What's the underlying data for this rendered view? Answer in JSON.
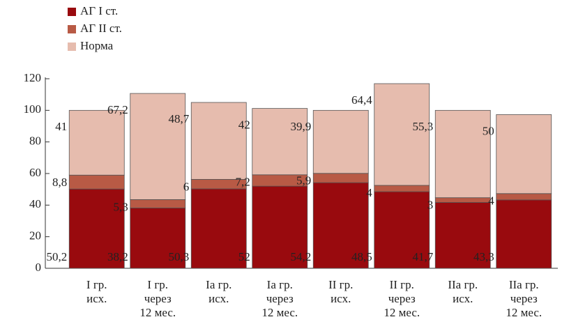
{
  "chart_data": {
    "type": "stacked_bar",
    "categories": [
      [
        "I гр.",
        "исх."
      ],
      [
        "I гр.",
        "через",
        "12 мес."
      ],
      [
        "Ia гр.",
        "исх."
      ],
      [
        "Ia гр.",
        "через",
        "12 мес."
      ],
      [
        "II гр.",
        "исх."
      ],
      [
        "II гр.",
        "через",
        "12 мес."
      ],
      [
        "IIa гр.",
        "исх."
      ],
      [
        "IIa гр.",
        "через",
        "12 мес."
      ]
    ],
    "series": [
      {
        "name": "АГ I ст.",
        "color": "#990a0e",
        "values": [
          50.2,
          38.2,
          50.3,
          52,
          54.2,
          48.5,
          41.7,
          43.3
        ],
        "value_labels": [
          "50,2",
          "38,2",
          "50,3",
          "52",
          "54,2",
          "48,5",
          "41,7",
          "43,3"
        ]
      },
      {
        "name": "АГ II  ст.",
        "color": "#b85a45",
        "values": [
          8.8,
          5.3,
          6,
          7.2,
          5.9,
          4,
          3,
          4
        ],
        "value_labels": [
          "8,8",
          "5,3",
          "6",
          "7,2",
          "5,9",
          "4",
          "3",
          "4"
        ]
      },
      {
        "name": "Норма",
        "color": "#e6bcae",
        "values": [
          41,
          67.2,
          48.7,
          42,
          39.9,
          64.4,
          55.3,
          50
        ],
        "value_labels": [
          "41",
          "67,2",
          "48,7",
          "42",
          "39,9",
          "64,4",
          "55,3",
          "50"
        ]
      }
    ],
    "ylim": [
      0,
      120
    ],
    "yticks": [
      0,
      20,
      40,
      60,
      80,
      100,
      120
    ]
  }
}
